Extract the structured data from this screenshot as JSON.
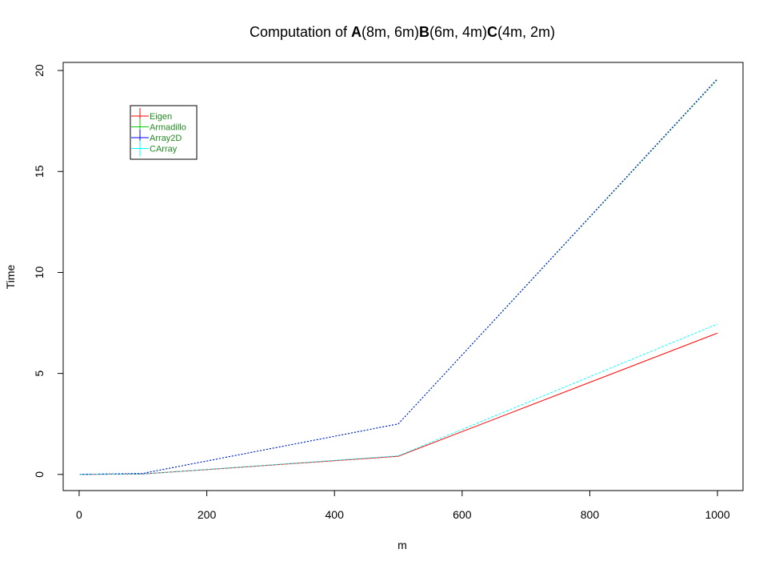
{
  "chart_data": {
    "type": "line",
    "title": {
      "parts": [
        {
          "text": "Computation of ",
          "bold": false
        },
        {
          "text": "A",
          "bold": true
        },
        {
          "text": "(8m, 6m)",
          "bold": false
        },
        {
          "text": "B",
          "bold": true
        },
        {
          "text": "(6m, 4m)",
          "bold": false
        },
        {
          "text": "C",
          "bold": true
        },
        {
          "text": "(4m, 2m)",
          "bold": false
        }
      ]
    },
    "xlabel": "m",
    "ylabel": "Time",
    "xlim": [
      -25,
      1040
    ],
    "ylim": [
      -0.8,
      20.4
    ],
    "xticks": [
      0,
      200,
      400,
      600,
      800,
      1000
    ],
    "yticks": [
      0,
      5,
      10,
      15,
      20
    ],
    "x": [
      1,
      100,
      500,
      1000
    ],
    "legend_position": "top-left",
    "series": [
      {
        "name": "Eigen",
        "color": "#ff0000",
        "dash": "",
        "values": [
          0,
          0.02,
          0.9,
          7.0
        ]
      },
      {
        "name": "Armadillo",
        "color": "#00cc00",
        "dash": "2,2",
        "values": [
          0,
          0.05,
          2.5,
          19.55
        ]
      },
      {
        "name": "Array2D",
        "color": "#0000ff",
        "dash": "2,2",
        "values": [
          0,
          0.05,
          2.5,
          19.6
        ]
      },
      {
        "name": "CArray",
        "color": "#00ffff",
        "dash": "3,2",
        "values": [
          0,
          0.02,
          0.92,
          7.45
        ]
      }
    ]
  }
}
